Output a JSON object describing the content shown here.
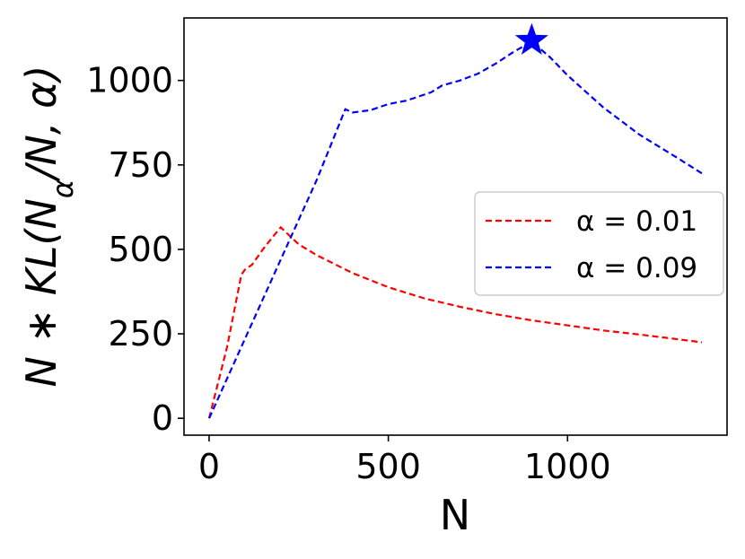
{
  "chart_data": {
    "type": "line",
    "xlabel": "N",
    "ylabel": "N * KL(Nα/N, α)",
    "xlim": [
      -70,
      1445
    ],
    "ylim": [
      -50,
      1185
    ],
    "xticks": [
      0,
      500,
      1000
    ],
    "xtick_labels": [
      "0",
      "500",
      "1000"
    ],
    "yticks": [
      0,
      250,
      500,
      750,
      1000
    ],
    "ytick_labels": [
      "0",
      "250",
      "500",
      "750",
      "1000"
    ],
    "grid": false,
    "legend_position": "center-right",
    "series": [
      {
        "name": "α = 0.01",
        "color": "#ff0000",
        "style": "dashed",
        "x": [
          0,
          50,
          90,
          100,
          120,
          150,
          180,
          200,
          220,
          250,
          300,
          400,
          500,
          600,
          700,
          800,
          900,
          1000,
          1100,
          1200,
          1300,
          1375
        ],
        "y": [
          0,
          210,
          425,
          440,
          455,
          500,
          540,
          565,
          545,
          515,
          483,
          430,
          388,
          355,
          330,
          308,
          290,
          275,
          260,
          248,
          235,
          225
        ]
      },
      {
        "name": "α = 0.09",
        "color": "#0000ff",
        "style": "dashed",
        "x": [
          0,
          100,
          200,
          300,
          380,
          400,
          450,
          500,
          550,
          600,
          620,
          650,
          700,
          750,
          800,
          850,
          900,
          950,
          1000,
          1100,
          1200,
          1300,
          1375
        ],
        "y": [
          0,
          235,
          470,
          705,
          915,
          905,
          912,
          930,
          940,
          958,
          965,
          985,
          1000,
          1020,
          1050,
          1085,
          1115,
          1070,
          1015,
          920,
          840,
          775,
          725
        ]
      }
    ],
    "markers": [
      {
        "series": "α = 0.09",
        "shape": "star",
        "color": "#0000ff",
        "x": 900,
        "y": 1118
      }
    ]
  }
}
